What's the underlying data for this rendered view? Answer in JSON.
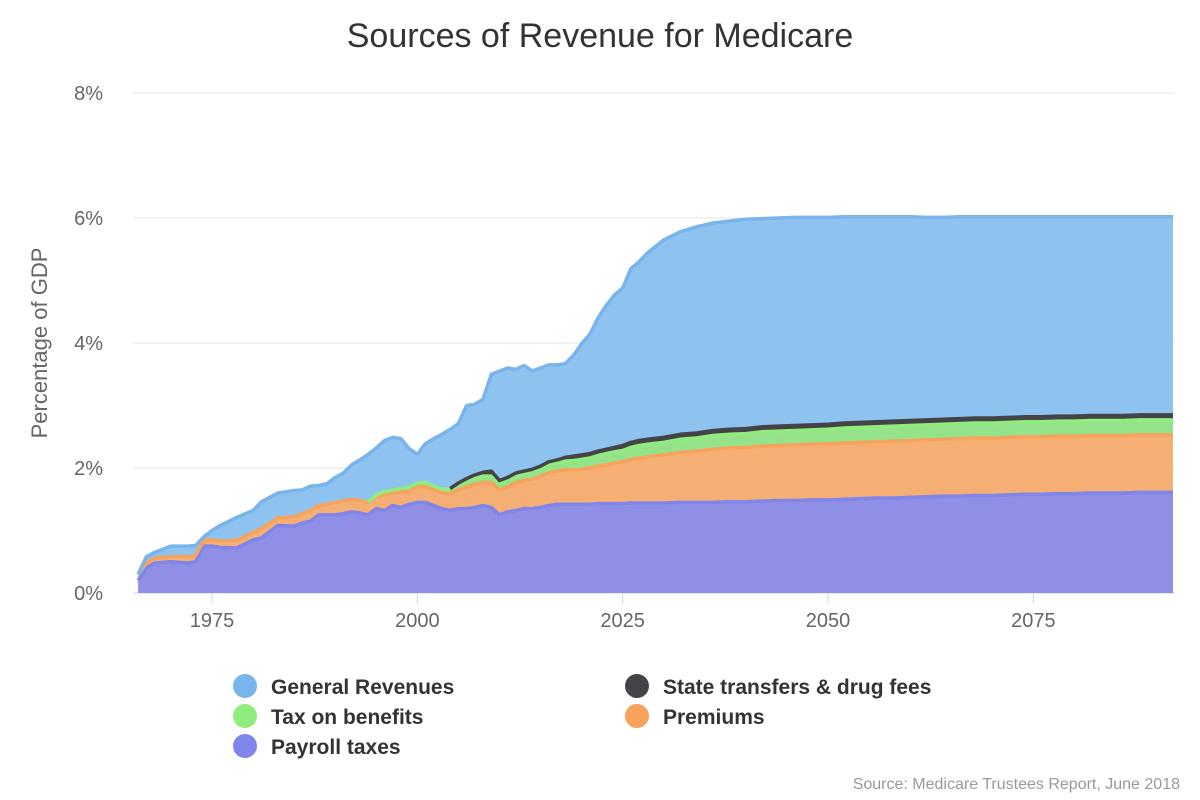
{
  "chart_data": {
    "type": "area",
    "stacked": true,
    "title": "Sources of Revenue for Medicare",
    "xlabel": "",
    "ylabel": "Percentage of GDP",
    "xlim": [
      1966,
      2092
    ],
    "ylim": [
      0,
      8
    ],
    "x_ticks": [
      1975,
      2000,
      2025,
      2050,
      2075
    ],
    "x_tick_labels": [
      "1975",
      "2000",
      "2025",
      "2050",
      "2075"
    ],
    "y_ticks": [
      0,
      2,
      4,
      6,
      8
    ],
    "y_tick_labels": [
      "0%",
      "2%",
      "4%",
      "6%",
      "8%"
    ],
    "grid": true,
    "source": "Source: Medicare Trustees Report, June 2018",
    "x": [
      1966,
      1967,
      1968,
      1970,
      1972,
      1973,
      1974,
      1975,
      1976,
      1978,
      1980,
      1981,
      1983,
      1985,
      1986,
      1987,
      1988,
      1989,
      1990,
      1991,
      1992,
      1993,
      1994,
      1995,
      1996,
      1997,
      1998,
      1999,
      2000,
      2001,
      2002,
      2003,
      2004,
      2005,
      2006,
      2007,
      2008,
      2009,
      2010,
      2011,
      2012,
      2013,
      2014,
      2015,
      2016,
      2017,
      2018,
      2019,
      2020,
      2021,
      2022,
      2023,
      2024,
      2025,
      2026,
      2027,
      2028,
      2030,
      2032,
      2034,
      2036,
      2038,
      2040,
      2042,
      2044,
      2046,
      2048,
      2050,
      2052,
      2054,
      2056,
      2058,
      2060,
      2062,
      2064,
      2066,
      2068,
      2070,
      2072,
      2074,
      2076,
      2078,
      2080,
      2082,
      2084,
      2086,
      2088,
      2090,
      2092
    ],
    "series": [
      {
        "name": "Payroll taxes",
        "color": "#8f8fe6",
        "values": [
          0.2,
          0.4,
          0.48,
          0.5,
          0.48,
          0.5,
          0.75,
          0.75,
          0.73,
          0.72,
          0.85,
          0.88,
          1.08,
          1.07,
          1.12,
          1.15,
          1.25,
          1.25,
          1.25,
          1.27,
          1.3,
          1.28,
          1.25,
          1.35,
          1.32,
          1.4,
          1.37,
          1.42,
          1.45,
          1.45,
          1.4,
          1.35,
          1.32,
          1.35,
          1.35,
          1.37,
          1.4,
          1.37,
          1.25,
          1.3,
          1.32,
          1.35,
          1.35,
          1.37,
          1.4,
          1.42,
          1.42,
          1.42,
          1.42,
          1.42,
          1.43,
          1.43,
          1.43,
          1.43,
          1.44,
          1.44,
          1.44,
          1.44,
          1.45,
          1.45,
          1.45,
          1.46,
          1.46,
          1.47,
          1.48,
          1.48,
          1.49,
          1.49,
          1.5,
          1.51,
          1.52,
          1.52,
          1.53,
          1.54,
          1.55,
          1.55,
          1.56,
          1.56,
          1.57,
          1.58,
          1.58,
          1.59,
          1.59,
          1.6,
          1.6,
          1.6,
          1.61,
          1.61,
          1.61
        ]
      },
      {
        "name": "Premiums",
        "color": "#f5ae73",
        "values": [
          0.1,
          0.08,
          0.08,
          0.08,
          0.1,
          0.1,
          0.1,
          0.1,
          0.1,
          0.12,
          0.12,
          0.15,
          0.12,
          0.15,
          0.15,
          0.17,
          0.15,
          0.17,
          0.2,
          0.2,
          0.2,
          0.2,
          0.2,
          0.2,
          0.25,
          0.2,
          0.25,
          0.22,
          0.25,
          0.25,
          0.25,
          0.25,
          0.27,
          0.3,
          0.35,
          0.37,
          0.37,
          0.4,
          0.4,
          0.4,
          0.45,
          0.45,
          0.47,
          0.5,
          0.52,
          0.53,
          0.55,
          0.55,
          0.56,
          0.58,
          0.6,
          0.62,
          0.65,
          0.67,
          0.7,
          0.72,
          0.74,
          0.77,
          0.8,
          0.82,
          0.85,
          0.86,
          0.87,
          0.88,
          0.88,
          0.89,
          0.89,
          0.9,
          0.9,
          0.9,
          0.9,
          0.91,
          0.91,
          0.91,
          0.91,
          0.92,
          0.92,
          0.92,
          0.92,
          0.92,
          0.92,
          0.92,
          0.92,
          0.92,
          0.92,
          0.92,
          0.92,
          0.92,
          0.92
        ]
      },
      {
        "name": "Tax on benefits",
        "color": "#94e38a",
        "values": [
          0,
          0,
          0,
          0,
          0,
          0,
          0,
          0,
          0,
          0,
          0,
          0,
          0,
          0,
          0,
          0,
          0,
          0,
          0,
          0,
          0,
          0,
          0,
          0.02,
          0.05,
          0.05,
          0.05,
          0.05,
          0.06,
          0.07,
          0.06,
          0.06,
          0.08,
          0.09,
          0.1,
          0.1,
          0.1,
          0.1,
          0.1,
          0.1,
          0.11,
          0.11,
          0.12,
          0.12,
          0.13,
          0.13,
          0.14,
          0.15,
          0.16,
          0.16,
          0.17,
          0.18,
          0.18,
          0.18,
          0.19,
          0.2,
          0.2,
          0.2,
          0.21,
          0.21,
          0.22,
          0.22,
          0.22,
          0.23,
          0.23,
          0.23,
          0.23,
          0.23,
          0.24,
          0.24,
          0.24,
          0.24,
          0.24,
          0.24,
          0.24,
          0.24,
          0.24,
          0.24,
          0.24,
          0.24,
          0.24,
          0.24,
          0.24,
          0.24,
          0.24,
          0.24,
          0.24,
          0.24,
          0.24
        ]
      },
      {
        "name": "State transfers & drug fees",
        "color": "#444448",
        "values": [
          0,
          0,
          0,
          0,
          0,
          0,
          0,
          0,
          0,
          0,
          0,
          0,
          0,
          0,
          0,
          0,
          0,
          0,
          0,
          0,
          0,
          0,
          0,
          0,
          0,
          0,
          0,
          0,
          0,
          0,
          0,
          0,
          0,
          0.02,
          0.03,
          0.05,
          0.06,
          0.08,
          0.05,
          0.05,
          0.04,
          0.04,
          0.04,
          0.04,
          0.05,
          0.05,
          0.06,
          0.07,
          0.07,
          0.07,
          0.07,
          0.07,
          0.07,
          0.08,
          0.08,
          0.08,
          0.08,
          0.08,
          0.08,
          0.08,
          0.08,
          0.08,
          0.08,
          0.08,
          0.08,
          0.08,
          0.08,
          0.08,
          0.08,
          0.08,
          0.08,
          0.08,
          0.08,
          0.08,
          0.08,
          0.08,
          0.08,
          0.08,
          0.08,
          0.08,
          0.08,
          0.08,
          0.08,
          0.08,
          0.08,
          0.08,
          0.08,
          0.08,
          0.08
        ]
      },
      {
        "name": "General Revenues",
        "color": "#8ec2ef",
        "values": [
          0.0,
          0.1,
          0.09,
          0.17,
          0.17,
          0.16,
          0.05,
          0.15,
          0.25,
          0.37,
          0.35,
          0.43,
          0.4,
          0.42,
          0.38,
          0.39,
          0.32,
          0.33,
          0.4,
          0.45,
          0.55,
          0.65,
          0.77,
          0.75,
          0.82,
          0.84,
          0.8,
          0.62,
          0.46,
          0.62,
          0.76,
          0.88,
          0.95,
          0.95,
          1.17,
          1.13,
          1.17,
          1.55,
          1.75,
          1.75,
          1.66,
          1.69,
          1.57,
          1.57,
          1.55,
          1.52,
          1.5,
          1.61,
          1.78,
          1.91,
          2.13,
          2.3,
          2.44,
          2.52,
          2.78,
          2.86,
          2.98,
          3.16,
          3.24,
          3.3,
          3.32,
          3.33,
          3.35,
          3.33,
          3.33,
          3.33,
          3.32,
          3.31,
          3.3,
          3.29,
          3.28,
          3.27,
          3.26,
          3.24,
          3.23,
          3.23,
          3.22,
          3.22,
          3.21,
          3.2,
          3.2,
          3.19,
          3.19,
          3.18,
          3.18,
          3.18,
          3.17,
          3.17,
          3.17
        ]
      }
    ],
    "legend": [
      {
        "label": "General Revenues",
        "color": "#7ab4ec"
      },
      {
        "label": "State transfers & drug fees",
        "color": "#434348"
      },
      {
        "label": "Tax on benefits",
        "color": "#90ed7d"
      },
      {
        "label": "Premiums",
        "color": "#f7a35c"
      },
      {
        "label": "Payroll taxes",
        "color": "#8085e9"
      }
    ]
  }
}
